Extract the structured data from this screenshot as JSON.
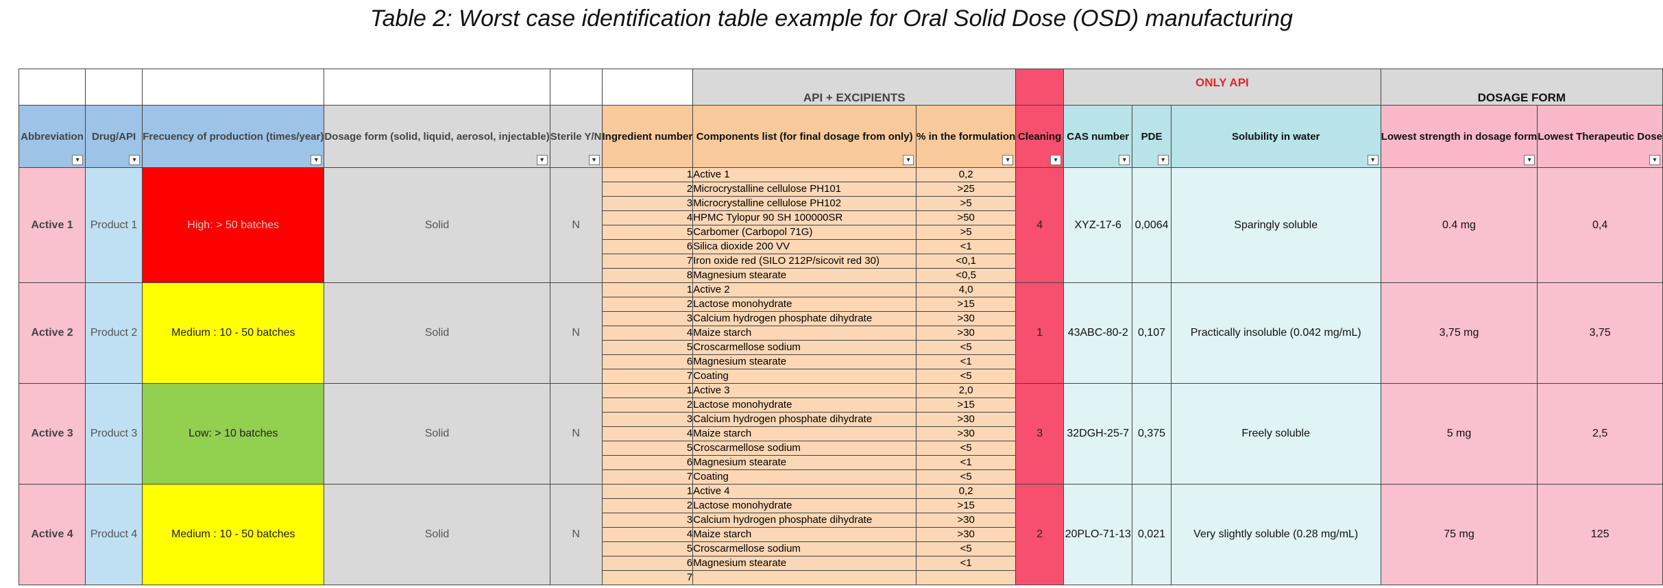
{
  "title": "Table 2: Worst case identification table example for Oral Solid Dose (OSD) manufacturing",
  "group_headers": {
    "api_excipients": "API + EXCIPIENTS",
    "only_api": "ONLY API",
    "dosage_form": "DOSAGE FORM"
  },
  "columns": {
    "abbreviation": "Abbreviation",
    "drug_api": "Drug/API",
    "frequency": "Frecuency of production (times/year)",
    "dosage_form": "Dosage form (solid, liquid, aerosol, injectable)",
    "sterile": "Sterile Y/N",
    "ingredient_number": "Ingredient number",
    "components": "Components list (for final dosage from only)",
    "percent": "% in the formulation",
    "cleaning": "Cleaning",
    "cas": "CAS number",
    "pde": "PDE",
    "solubility": "Solubility in water",
    "lowest_strength": "Lowest strength in dosage form",
    "lowest_dose": "Lowest Therapeutic Dose"
  },
  "rows": [
    {
      "abbreviation": "Active 1",
      "drug": "Product 1",
      "frequency": "High: > 50 batches",
      "frequency_color": "#ff0000",
      "dosage_form": "Solid",
      "sterile": "N",
      "cleaning": "4",
      "cas": "XYZ-17-6",
      "pde": "0,0064",
      "solubility": "Sparingly soluble",
      "lowest_strength": "0.4 mg",
      "lowest_dose": "0,4",
      "components": [
        {
          "n": "1",
          "name": "Active 1",
          "pct": "0,2"
        },
        {
          "n": "2",
          "name": "Microcrystalline cellulose PH101",
          "pct": ">25"
        },
        {
          "n": "3",
          "name": "Microcrystalline cellulose PH102",
          "pct": ">5"
        },
        {
          "n": "4",
          "name": "HPMC Tylopur 90 SH 100000SR",
          "pct": ">50"
        },
        {
          "n": "5",
          "name": "Carbomer (Carbopol 71G)",
          "pct": ">5"
        },
        {
          "n": "6",
          "name": "Silica dioxide 200 VV",
          "pct": "<1"
        },
        {
          "n": "7",
          "name": "Iron oxide red (SILO 212P/sicovit red 30)",
          "pct": "<0,1"
        },
        {
          "n": "8",
          "name": "Magnesium stearate",
          "pct": "<0,5"
        }
      ]
    },
    {
      "abbreviation": "Active 2",
      "drug": "Product 2",
      "frequency": "Medium : 10 - 50 batches",
      "frequency_color": "#ffff00",
      "dosage_form": "Solid",
      "sterile": "N",
      "cleaning": "1",
      "cas": "43ABC-80-2",
      "pde": "0,107",
      "solubility": "Practically insoluble (0.042 mg/mL)",
      "lowest_strength": "3,75 mg",
      "lowest_dose": "3,75",
      "components": [
        {
          "n": "1",
          "name": "Active 2",
          "pct": "4,0"
        },
        {
          "n": "2",
          "name": "Lactose monohydrate",
          "pct": ">15"
        },
        {
          "n": "3",
          "name": "Calcium hydrogen phosphate dihydrate",
          "pct": ">30"
        },
        {
          "n": "4",
          "name": "Maize starch",
          "pct": ">30"
        },
        {
          "n": "5",
          "name": "Croscarmellose sodium",
          "pct": "<5"
        },
        {
          "n": "6",
          "name": "Magnesium stearate",
          "pct": "<1"
        },
        {
          "n": "7",
          "name": "Coating",
          "pct": "<5"
        }
      ]
    },
    {
      "abbreviation": "Active 3",
      "drug": "Product 3",
      "frequency": "Low: > 10 batches",
      "frequency_color": "#92d050",
      "dosage_form": "Solid",
      "sterile": "N",
      "cleaning": "3",
      "cas": "32DGH-25-7",
      "pde": "0,375",
      "solubility": "Freely soluble",
      "lowest_strength": "5 mg",
      "lowest_dose": "2,5",
      "components": [
        {
          "n": "1",
          "name": "Active 3",
          "pct": "2,0"
        },
        {
          "n": "2",
          "name": "Lactose monohydrate",
          "pct": ">15"
        },
        {
          "n": "3",
          "name": "Calcium hydrogen phosphate dihydrate",
          "pct": ">30"
        },
        {
          "n": "4",
          "name": "Maize starch",
          "pct": ">30"
        },
        {
          "n": "5",
          "name": "Croscarmellose sodium",
          "pct": "<5"
        },
        {
          "n": "6",
          "name": "Magnesium stearate",
          "pct": "<1"
        },
        {
          "n": "7",
          "name": "Coating",
          "pct": "<5"
        }
      ]
    },
    {
      "abbreviation": "Active 4",
      "drug": "Product 4",
      "frequency": "Medium : 10 - 50 batches",
      "frequency_color": "#ffff00",
      "dosage_form": "Solid",
      "sterile": "N",
      "cleaning": "2",
      "cas": "20PLO-71-13",
      "pde": "0,021",
      "solubility": "Very slightly soluble (0.28 mg/mL)",
      "lowest_strength": "75 mg",
      "lowest_dose": "125",
      "components": [
        {
          "n": "1",
          "name": "Active 4",
          "pct": "0,2"
        },
        {
          "n": "2",
          "name": "Lactose monohydrate",
          "pct": ">15"
        },
        {
          "n": "3",
          "name": "Calcium hydrogen phosphate dihydrate",
          "pct": ">30"
        },
        {
          "n": "4",
          "name": "Maize starch",
          "pct": ">30"
        },
        {
          "n": "5",
          "name": "Croscarmellose sodium",
          "pct": "<5"
        },
        {
          "n": "6",
          "name": "Magnesium stearate",
          "pct": "<1"
        },
        {
          "n": "7",
          "name": "",
          "pct": ""
        }
      ]
    }
  ]
}
